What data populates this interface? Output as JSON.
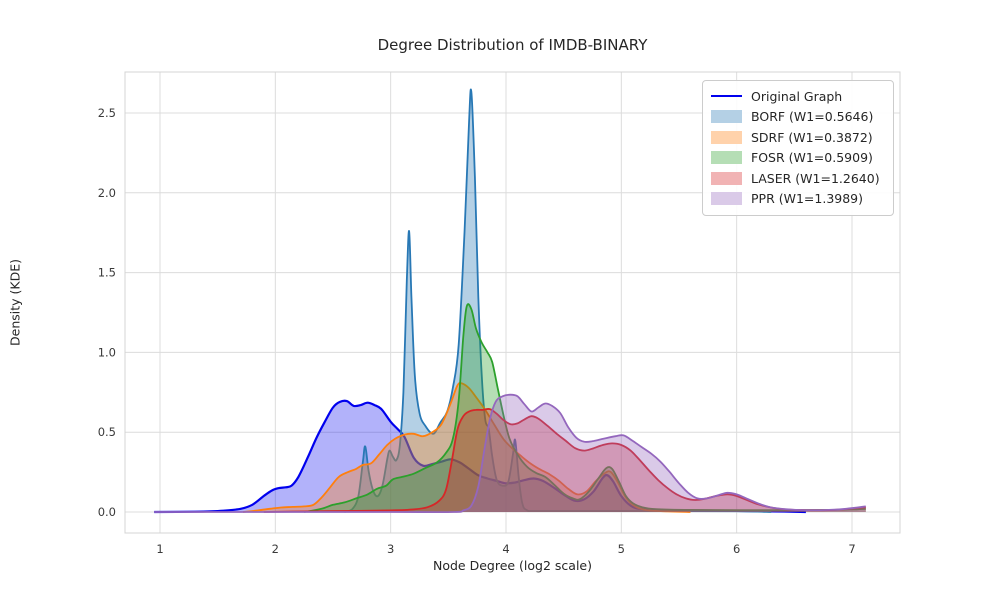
{
  "chart_data": {
    "type": "area",
    "title": "Degree Distribution of IMDB-BINARY",
    "xlabel": "Node Degree (log2 scale)",
    "ylabel": "Density (KDE)",
    "xlim": [
      0.7,
      7.42
    ],
    "ylim": [
      0,
      2.76
    ],
    "xticks": [
      "1",
      "2",
      "3",
      "4",
      "5",
      "6",
      "7"
    ],
    "xtick_values": [
      1,
      2,
      3,
      4,
      5,
      6,
      7
    ],
    "yticks": [
      "0.0",
      "0.5",
      "1.0",
      "1.5",
      "2.0",
      "2.5"
    ],
    "ytick_values": [
      0,
      0.5,
      1.0,
      1.5,
      2.0,
      2.5
    ],
    "grid": true,
    "grid_color": "#dcdcdc",
    "spine_color": "#d4d4d4",
    "legend_position": "upper right",
    "series": [
      {
        "name": "original-graph",
        "legend_label": "Original Graph",
        "legend_style": "line",
        "color": "#0000ee",
        "fill_alpha": 0.3,
        "line_width": 2.2,
        "points": [
          [
            0.95,
            0
          ],
          [
            1.3,
            0.002
          ],
          [
            1.55,
            0.008
          ],
          [
            1.7,
            0.02
          ],
          [
            1.8,
            0.045
          ],
          [
            1.9,
            0.1
          ],
          [
            1.97,
            0.135
          ],
          [
            2.03,
            0.15
          ],
          [
            2.09,
            0.155
          ],
          [
            2.14,
            0.165
          ],
          [
            2.2,
            0.22
          ],
          [
            2.28,
            0.34
          ],
          [
            2.36,
            0.47
          ],
          [
            2.44,
            0.58
          ],
          [
            2.5,
            0.655
          ],
          [
            2.56,
            0.69
          ],
          [
            2.62,
            0.695
          ],
          [
            2.68,
            0.665
          ],
          [
            2.74,
            0.67
          ],
          [
            2.8,
            0.685
          ],
          [
            2.86,
            0.67
          ],
          [
            2.92,
            0.645
          ],
          [
            3.0,
            0.565
          ],
          [
            3.06,
            0.52
          ],
          [
            3.12,
            0.47
          ],
          [
            3.2,
            0.34
          ],
          [
            3.28,
            0.29
          ],
          [
            3.36,
            0.3
          ],
          [
            3.44,
            0.315
          ],
          [
            3.52,
            0.33
          ],
          [
            3.6,
            0.31
          ],
          [
            3.68,
            0.27
          ],
          [
            3.76,
            0.23
          ],
          [
            3.84,
            0.21
          ],
          [
            3.92,
            0.195
          ],
          [
            4.0,
            0.18
          ],
          [
            4.08,
            0.185
          ],
          [
            4.16,
            0.2
          ],
          [
            4.24,
            0.21
          ],
          [
            4.32,
            0.195
          ],
          [
            4.42,
            0.15
          ],
          [
            4.52,
            0.1
          ],
          [
            4.6,
            0.07
          ],
          [
            4.68,
            0.08
          ],
          [
            4.76,
            0.13
          ],
          [
            4.84,
            0.215
          ],
          [
            4.88,
            0.23
          ],
          [
            4.93,
            0.19
          ],
          [
            5.0,
            0.1
          ],
          [
            5.08,
            0.04
          ],
          [
            5.16,
            0.02
          ],
          [
            5.3,
            0.012
          ],
          [
            5.6,
            0.01
          ],
          [
            6.0,
            0.007
          ],
          [
            6.3,
            0.004
          ],
          [
            6.6,
            0
          ]
        ]
      },
      {
        "name": "borf",
        "legend_label": "BORF (W1=0.5646)",
        "legend_style": "patch",
        "color": "#2878b5",
        "fill_alpha": 0.35,
        "line_width": 1.8,
        "points": [
          [
            2.6,
            0
          ],
          [
            2.67,
            0.02
          ],
          [
            2.72,
            0.1
          ],
          [
            2.76,
            0.32
          ],
          [
            2.78,
            0.41
          ],
          [
            2.81,
            0.25
          ],
          [
            2.85,
            0.13
          ],
          [
            2.89,
            0.1
          ],
          [
            2.93,
            0.17
          ],
          [
            2.97,
            0.33
          ],
          [
            2.99,
            0.385
          ],
          [
            3.02,
            0.345
          ],
          [
            3.05,
            0.325
          ],
          [
            3.08,
            0.42
          ],
          [
            3.11,
            0.75
          ],
          [
            3.14,
            1.45
          ],
          [
            3.16,
            1.76
          ],
          [
            3.18,
            1.35
          ],
          [
            3.21,
            0.85
          ],
          [
            3.25,
            0.62
          ],
          [
            3.3,
            0.54
          ],
          [
            3.37,
            0.49
          ],
          [
            3.43,
            0.56
          ],
          [
            3.49,
            0.63
          ],
          [
            3.54,
            0.78
          ],
          [
            3.59,
            1.05
          ],
          [
            3.64,
            1.75
          ],
          [
            3.68,
            2.45
          ],
          [
            3.7,
            2.63
          ],
          [
            3.73,
            2.1
          ],
          [
            3.76,
            1.35
          ],
          [
            3.79,
            0.85
          ],
          [
            3.82,
            0.58
          ],
          [
            3.85,
            0.52
          ],
          [
            3.88,
            0.35
          ],
          [
            3.92,
            0.2
          ],
          [
            3.97,
            0.165
          ],
          [
            4.02,
            0.19
          ],
          [
            4.06,
            0.36
          ],
          [
            4.08,
            0.45
          ],
          [
            4.11,
            0.22
          ],
          [
            4.14,
            0.06
          ],
          [
            4.18,
            0.012
          ],
          [
            4.3,
            0.006
          ],
          [
            5.0,
            0.006
          ],
          [
            6.0,
            0.005
          ],
          [
            6.3,
            0
          ]
        ]
      },
      {
        "name": "sdrf",
        "legend_label": "SDRF (W1=0.3872)",
        "legend_style": "patch",
        "color": "#ff7f0e",
        "fill_alpha": 0.35,
        "line_width": 1.8,
        "points": [
          [
            1.72,
            0
          ],
          [
            1.85,
            0.01
          ],
          [
            1.95,
            0.02
          ],
          [
            2.05,
            0.028
          ],
          [
            2.15,
            0.032
          ],
          [
            2.25,
            0.035
          ],
          [
            2.33,
            0.045
          ],
          [
            2.4,
            0.09
          ],
          [
            2.47,
            0.15
          ],
          [
            2.55,
            0.22
          ],
          [
            2.63,
            0.25
          ],
          [
            2.7,
            0.27
          ],
          [
            2.76,
            0.295
          ],
          [
            2.83,
            0.305
          ],
          [
            2.9,
            0.36
          ],
          [
            2.97,
            0.42
          ],
          [
            3.04,
            0.46
          ],
          [
            3.12,
            0.485
          ],
          [
            3.2,
            0.49
          ],
          [
            3.28,
            0.475
          ],
          [
            3.36,
            0.5
          ],
          [
            3.44,
            0.55
          ],
          [
            3.52,
            0.68
          ],
          [
            3.58,
            0.795
          ],
          [
            3.62,
            0.805
          ],
          [
            3.68,
            0.775
          ],
          [
            3.74,
            0.72
          ],
          [
            3.82,
            0.64
          ],
          [
            3.9,
            0.545
          ],
          [
            3.98,
            0.455
          ],
          [
            4.06,
            0.395
          ],
          [
            4.14,
            0.345
          ],
          [
            4.22,
            0.3
          ],
          [
            4.3,
            0.265
          ],
          [
            4.38,
            0.235
          ],
          [
            4.46,
            0.195
          ],
          [
            4.54,
            0.145
          ],
          [
            4.62,
            0.11
          ],
          [
            4.7,
            0.13
          ],
          [
            4.78,
            0.195
          ],
          [
            4.86,
            0.245
          ],
          [
            4.91,
            0.25
          ],
          [
            4.97,
            0.185
          ],
          [
            5.04,
            0.09
          ],
          [
            5.12,
            0.035
          ],
          [
            5.22,
            0.012
          ],
          [
            5.4,
            0.004
          ],
          [
            5.6,
            0
          ]
        ]
      },
      {
        "name": "fosr",
        "legend_label": "FOSR (W1=0.5909)",
        "legend_style": "patch",
        "color": "#2ca02c",
        "fill_alpha": 0.35,
        "line_width": 1.8,
        "points": [
          [
            2.25,
            0
          ],
          [
            2.4,
            0.02
          ],
          [
            2.5,
            0.045
          ],
          [
            2.6,
            0.06
          ],
          [
            2.7,
            0.085
          ],
          [
            2.8,
            0.11
          ],
          [
            2.88,
            0.145
          ],
          [
            2.96,
            0.165
          ],
          [
            3.02,
            0.205
          ],
          [
            3.1,
            0.22
          ],
          [
            3.2,
            0.24
          ],
          [
            3.3,
            0.275
          ],
          [
            3.4,
            0.31
          ],
          [
            3.48,
            0.37
          ],
          [
            3.54,
            0.46
          ],
          [
            3.59,
            0.7
          ],
          [
            3.63,
            1.1
          ],
          [
            3.66,
            1.29
          ],
          [
            3.7,
            1.27
          ],
          [
            3.74,
            1.15
          ],
          [
            3.79,
            1.06
          ],
          [
            3.84,
            1.0
          ],
          [
            3.88,
            0.94
          ],
          [
            3.93,
            0.77
          ],
          [
            3.98,
            0.6
          ],
          [
            4.03,
            0.46
          ],
          [
            4.1,
            0.36
          ],
          [
            4.18,
            0.285
          ],
          [
            4.26,
            0.245
          ],
          [
            4.34,
            0.22
          ],
          [
            4.42,
            0.17
          ],
          [
            4.5,
            0.115
          ],
          [
            4.58,
            0.085
          ],
          [
            4.64,
            0.08
          ],
          [
            4.72,
            0.13
          ],
          [
            4.8,
            0.21
          ],
          [
            4.87,
            0.275
          ],
          [
            4.92,
            0.27
          ],
          [
            4.98,
            0.19
          ],
          [
            5.04,
            0.1
          ],
          [
            5.1,
            0.055
          ],
          [
            5.18,
            0.03
          ],
          [
            5.3,
            0.018
          ],
          [
            5.6,
            0.013
          ],
          [
            6.0,
            0.012
          ],
          [
            6.5,
            0.012
          ],
          [
            6.85,
            0.013
          ],
          [
            7.0,
            0.016
          ],
          [
            7.12,
            0.02
          ]
        ]
      },
      {
        "name": "laser",
        "legend_label": "LASER (W1=1.2640)",
        "legend_style": "patch",
        "color": "#d62728",
        "fill_alpha": 0.35,
        "line_width": 1.8,
        "points": [
          [
            1.9,
            0
          ],
          [
            2.3,
            0.004
          ],
          [
            2.7,
            0.007
          ],
          [
            3.0,
            0.01
          ],
          [
            3.2,
            0.016
          ],
          [
            3.32,
            0.03
          ],
          [
            3.42,
            0.07
          ],
          [
            3.48,
            0.14
          ],
          [
            3.53,
            0.32
          ],
          [
            3.58,
            0.52
          ],
          [
            3.63,
            0.6
          ],
          [
            3.68,
            0.63
          ],
          [
            3.74,
            0.64
          ],
          [
            3.8,
            0.64
          ],
          [
            3.86,
            0.645
          ],
          [
            3.92,
            0.615
          ],
          [
            3.98,
            0.575
          ],
          [
            4.04,
            0.55
          ],
          [
            4.1,
            0.555
          ],
          [
            4.16,
            0.58
          ],
          [
            4.22,
            0.6
          ],
          [
            4.28,
            0.585
          ],
          [
            4.36,
            0.54
          ],
          [
            4.44,
            0.49
          ],
          [
            4.52,
            0.445
          ],
          [
            4.6,
            0.4
          ],
          [
            4.68,
            0.385
          ],
          [
            4.76,
            0.4
          ],
          [
            4.84,
            0.42
          ],
          [
            4.92,
            0.43
          ],
          [
            5.0,
            0.42
          ],
          [
            5.08,
            0.385
          ],
          [
            5.16,
            0.325
          ],
          [
            5.24,
            0.26
          ],
          [
            5.32,
            0.2
          ],
          [
            5.4,
            0.15
          ],
          [
            5.48,
            0.11
          ],
          [
            5.56,
            0.085
          ],
          [
            5.64,
            0.075
          ],
          [
            5.72,
            0.082
          ],
          [
            5.82,
            0.1
          ],
          [
            5.92,
            0.11
          ],
          [
            6.0,
            0.1
          ],
          [
            6.1,
            0.072
          ],
          [
            6.2,
            0.045
          ],
          [
            6.32,
            0.025
          ],
          [
            6.45,
            0.015
          ],
          [
            6.6,
            0.012
          ],
          [
            6.8,
            0.012
          ],
          [
            6.95,
            0.018
          ],
          [
            7.12,
            0.03
          ]
        ]
      },
      {
        "name": "ppr",
        "legend_label": "PPR (W1=1.3989)",
        "legend_style": "patch",
        "color": "#9467bd",
        "fill_alpha": 0.35,
        "line_width": 1.8,
        "points": [
          [
            0.95,
            0
          ],
          [
            2.0,
            0
          ],
          [
            3.0,
            0
          ],
          [
            3.55,
            0
          ],
          [
            3.63,
            0.01
          ],
          [
            3.7,
            0.04
          ],
          [
            3.76,
            0.16
          ],
          [
            3.81,
            0.38
          ],
          [
            3.86,
            0.58
          ],
          [
            3.91,
            0.69
          ],
          [
            3.97,
            0.725
          ],
          [
            4.04,
            0.735
          ],
          [
            4.1,
            0.725
          ],
          [
            4.16,
            0.675
          ],
          [
            4.22,
            0.63
          ],
          [
            4.28,
            0.655
          ],
          [
            4.34,
            0.68
          ],
          [
            4.4,
            0.665
          ],
          [
            4.47,
            0.62
          ],
          [
            4.54,
            0.53
          ],
          [
            4.61,
            0.465
          ],
          [
            4.68,
            0.44
          ],
          [
            4.76,
            0.445
          ],
          [
            4.85,
            0.46
          ],
          [
            4.95,
            0.475
          ],
          [
            5.02,
            0.48
          ],
          [
            5.1,
            0.445
          ],
          [
            5.18,
            0.405
          ],
          [
            5.26,
            0.365
          ],
          [
            5.34,
            0.315
          ],
          [
            5.42,
            0.25
          ],
          [
            5.5,
            0.18
          ],
          [
            5.58,
            0.12
          ],
          [
            5.66,
            0.085
          ],
          [
            5.74,
            0.085
          ],
          [
            5.84,
            0.105
          ],
          [
            5.92,
            0.12
          ],
          [
            6.0,
            0.11
          ],
          [
            6.1,
            0.08
          ],
          [
            6.2,
            0.05
          ],
          [
            6.3,
            0.028
          ],
          [
            6.45,
            0.016
          ],
          [
            6.6,
            0.012
          ],
          [
            6.8,
            0.013
          ],
          [
            6.95,
            0.02
          ],
          [
            7.12,
            0.035
          ]
        ]
      }
    ]
  }
}
